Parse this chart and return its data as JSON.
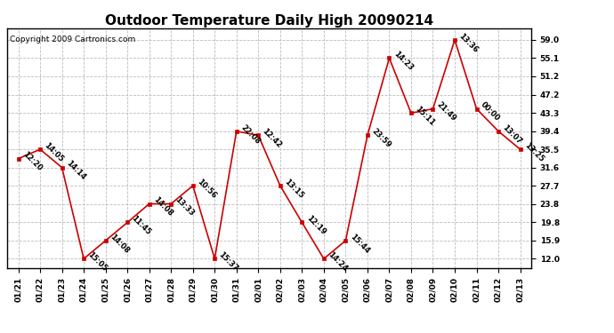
{
  "title": "Outdoor Temperature Daily High 20090214",
  "copyright": "Copyright 2009 Cartronics.com",
  "x_labels": [
    "01/21",
    "01/22",
    "01/23",
    "01/24",
    "01/25",
    "01/26",
    "01/27",
    "01/28",
    "01/29",
    "01/30",
    "01/31",
    "02/01",
    "02/02",
    "02/03",
    "02/04",
    "02/05",
    "02/06",
    "02/07",
    "02/08",
    "02/09",
    "02/10",
    "02/11",
    "02/12",
    "02/13"
  ],
  "y_values": [
    33.5,
    35.5,
    31.6,
    12.0,
    15.9,
    19.8,
    23.8,
    23.8,
    27.7,
    12.0,
    39.4,
    38.5,
    27.7,
    19.8,
    12.0,
    15.9,
    38.5,
    55.1,
    43.3,
    44.2,
    59.0,
    44.2,
    39.4,
    35.5
  ],
  "annotations": [
    "12:20",
    "14:05",
    "14:14",
    "15:05",
    "14:08",
    "11:45",
    "14:08",
    "13:33",
    "10:56",
    "15:37",
    "22:08",
    "12:42",
    "13:15",
    "12:19",
    "14:24",
    "15:44",
    "23:59",
    "14:23",
    "15:11",
    "21:49",
    "13:36",
    "00:00",
    "13:07",
    "13:25"
  ],
  "y_ticks": [
    12.0,
    15.9,
    19.8,
    23.8,
    27.7,
    31.6,
    35.5,
    39.4,
    43.3,
    47.2,
    51.2,
    55.1,
    59.0
  ],
  "y_min": 10.0,
  "y_max": 61.5,
  "line_color": "#cc0000",
  "marker_color": "#cc0000",
  "bg_color": "#ffffff",
  "grid_color": "#bbbbbb",
  "title_fontsize": 11,
  "annotation_fontsize": 6.0,
  "copyright_fontsize": 6.5,
  "tick_fontsize": 6.5
}
